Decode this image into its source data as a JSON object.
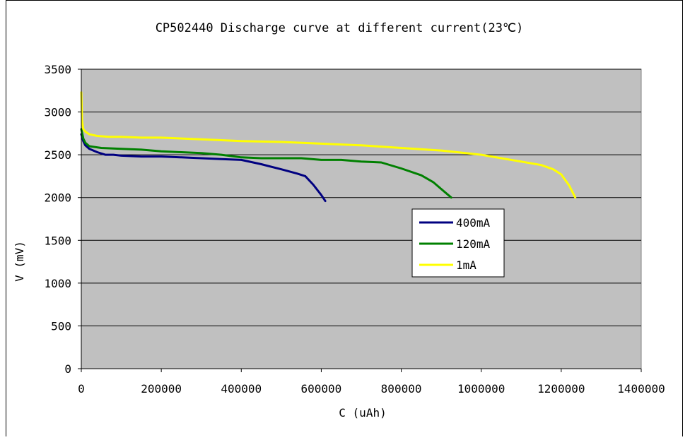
{
  "chart_data": {
    "type": "line",
    "title": "CP502440 Discharge  curve at different current(23℃)",
    "xlabel": "C (uAh)",
    "ylabel": "V (mV)",
    "xlim": [
      0,
      1400000
    ],
    "ylim": [
      0,
      3500
    ],
    "xticks": [
      0,
      200000,
      400000,
      600000,
      800000,
      1000000,
      1200000,
      1400000
    ],
    "yticks": [
      0,
      500,
      1000,
      1500,
      2000,
      2500,
      3000,
      3500
    ],
    "xtick_labels": [
      "0",
      "200000",
      "400000",
      "600000",
      "800000",
      "1000000",
      "1200000",
      "1400000"
    ],
    "ytick_labels": [
      "0",
      "500",
      "1000",
      "1500",
      "2000",
      "2500",
      "3000",
      "3500"
    ],
    "grid": "horizontal",
    "plot_background": "#c0c0c0",
    "legend_position": "center-right",
    "series": [
      {
        "name": "400mA",
        "color": "#000080",
        "x": [
          0,
          5000,
          10000,
          20000,
          40000,
          60000,
          80000,
          100000,
          150000,
          200000,
          250000,
          300000,
          350000,
          400000,
          450000,
          500000,
          540000,
          560000,
          580000,
          600000,
          610000
        ],
        "y": [
          2740,
          2660,
          2610,
          2570,
          2530,
          2500,
          2500,
          2490,
          2480,
          2480,
          2470,
          2460,
          2450,
          2440,
          2390,
          2330,
          2280,
          2250,
          2150,
          2030,
          1960
        ]
      },
      {
        "name": "120mA",
        "color": "#008000",
        "x": [
          0,
          5000,
          10000,
          20000,
          50000,
          100000,
          150000,
          200000,
          250000,
          300000,
          350000,
          400000,
          450000,
          500000,
          550000,
          600000,
          650000,
          700000,
          750000,
          800000,
          850000,
          880000,
          900000,
          925000
        ],
        "y": [
          2800,
          2690,
          2640,
          2600,
          2580,
          2570,
          2560,
          2540,
          2530,
          2520,
          2500,
          2470,
          2460,
          2460,
          2460,
          2440,
          2440,
          2420,
          2410,
          2340,
          2260,
          2180,
          2100,
          2000
        ]
      },
      {
        "name": "1mA",
        "color": "#ffff00",
        "x": [
          0,
          2000,
          5000,
          10000,
          20000,
          40000,
          70000,
          100000,
          150000,
          200000,
          300000,
          400000,
          500000,
          600000,
          700000,
          800000,
          900000,
          1000000,
          1050000,
          1100000,
          1150000,
          1180000,
          1200000,
          1220000,
          1235000
        ],
        "y": [
          3230,
          2900,
          2800,
          2770,
          2740,
          2720,
          2710,
          2710,
          2700,
          2700,
          2680,
          2660,
          2650,
          2630,
          2610,
          2580,
          2550,
          2500,
          2460,
          2420,
          2380,
          2330,
          2270,
          2140,
          2000
        ]
      }
    ]
  }
}
